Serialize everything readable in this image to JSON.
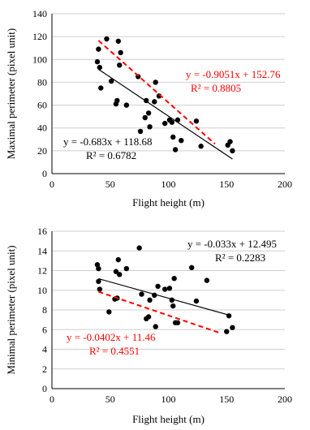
{
  "chart_data": [
    {
      "type": "scatter",
      "title": "",
      "xlabel": "Flight height (m)",
      "ylabel": "Maximal perimeter (pixel unit)",
      "xlim": [
        0,
        200
      ],
      "ylim": [
        0,
        140
      ],
      "xticks": [
        "0",
        "50",
        "100",
        "150",
        "200"
      ],
      "yticks": [
        "0",
        "20",
        "40",
        "60",
        "80",
        "100",
        "120",
        "140"
      ],
      "grid": "horizontal",
      "points": [
        [
          39,
          98
        ],
        [
          40,
          109
        ],
        [
          41,
          93
        ],
        [
          42,
          75
        ],
        [
          47,
          118
        ],
        [
          51,
          81
        ],
        [
          55,
          61
        ],
        [
          56,
          64
        ],
        [
          57,
          116
        ],
        [
          58,
          95
        ],
        [
          59,
          106
        ],
        [
          64,
          60
        ],
        [
          74,
          85
        ],
        [
          76,
          37
        ],
        [
          80,
          49
        ],
        [
          81,
          64
        ],
        [
          83,
          53
        ],
        [
          84,
          41
        ],
        [
          88,
          63
        ],
        [
          89,
          80
        ],
        [
          92,
          68
        ],
        [
          97,
          44
        ],
        [
          101,
          47
        ],
        [
          103,
          45
        ],
        [
          104,
          32
        ],
        [
          106,
          21
        ],
        [
          108,
          47
        ],
        [
          111,
          29
        ],
        [
          124,
          46
        ],
        [
          128,
          24
        ],
        [
          151,
          25
        ],
        [
          153,
          28
        ],
        [
          155,
          20
        ]
      ],
      "trendlines": [
        {
          "slope": -0.683,
          "intercept": 118.68,
          "x_range": [
            40,
            155
          ],
          "color": "#000000",
          "style": "solid",
          "equation": "y = -0.683x + 118.68",
          "r2": "R² = 0.6782"
        },
        {
          "slope": -0.9051,
          "intercept": 152.76,
          "x_range": [
            40,
            140
          ],
          "color": "#ff0000",
          "style": "dashed",
          "equation": "y = -0.9051x + 152.76",
          "r2": "R² = 0.8805"
        }
      ]
    },
    {
      "type": "scatter",
      "title": "",
      "xlabel": "Flight height (m)",
      "ylabel": "Minimal perimeter (pixel unit)",
      "xlim": [
        0,
        200
      ],
      "ylim": [
        0,
        16
      ],
      "xticks": [
        "0",
        "50",
        "100",
        "150",
        "200"
      ],
      "yticks": [
        "0",
        "2",
        "4",
        "6",
        "8",
        "10",
        "12",
        "14",
        "16"
      ],
      "grid": "horizontal",
      "points": [
        [
          39,
          12.6
        ],
        [
          40,
          12.2
        ],
        [
          40,
          10.9
        ],
        [
          41,
          10.1
        ],
        [
          49,
          7.8
        ],
        [
          54,
          9.1
        ],
        [
          55,
          11.9
        ],
        [
          56,
          9.2
        ],
        [
          57,
          13.1
        ],
        [
          58,
          11.6
        ],
        [
          64,
          12.2
        ],
        [
          75,
          14.3
        ],
        [
          77,
          9.6
        ],
        [
          81,
          7.1
        ],
        [
          83,
          7.3
        ],
        [
          84,
          9.0
        ],
        [
          88,
          9.5
        ],
        [
          89,
          6.3
        ],
        [
          91,
          10.4
        ],
        [
          97,
          10.1
        ],
        [
          101,
          10.2
        ],
        [
          103,
          9.0
        ],
        [
          104,
          8.4
        ],
        [
          105,
          11.2
        ],
        [
          106,
          6.7
        ],
        [
          108,
          6.7
        ],
        [
          120,
          12.3
        ],
        [
          124,
          8.9
        ],
        [
          133,
          11.0
        ],
        [
          150,
          5.8
        ],
        [
          152,
          7.4
        ],
        [
          155,
          6.2
        ]
      ],
      "trendlines": [
        {
          "slope": -0.033,
          "intercept": 12.495,
          "x_range": [
            40,
            152
          ],
          "color": "#000000",
          "style": "solid",
          "equation": "y = -0.033x + 12.495",
          "r2": "R² = 0.2283"
        },
        {
          "slope": -0.0402,
          "intercept": 11.46,
          "x_range": [
            40,
            145
          ],
          "color": "#ff0000",
          "style": "dashed",
          "equation": "y = -0.0402x + 11.46",
          "r2": "R² = 0.4551"
        }
      ]
    }
  ]
}
